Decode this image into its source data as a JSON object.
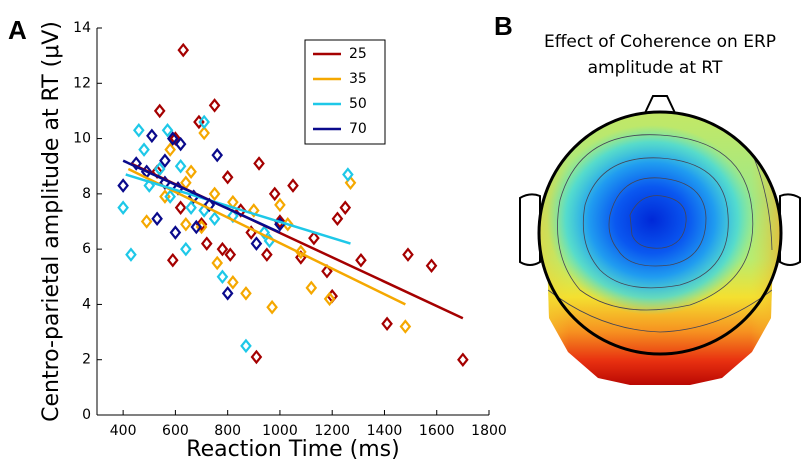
{
  "panels": [
    "A",
    "B"
  ],
  "chart_data": [
    {
      "type": "scatter",
      "xlabel": "Reaction Time (ms)",
      "ylabel": "Centro-parietal amplitude at RT (μV)",
      "xlim": [
        300,
        1800
      ],
      "xticks": [
        400,
        600,
        800,
        1000,
        1200,
        1400,
        1600,
        1800
      ],
      "ylim": [
        0,
        14
      ],
      "yticks": [
        0,
        2,
        4,
        6,
        8,
        10,
        12,
        14
      ],
      "legend": "upper right",
      "series": [
        {
          "name": "25",
          "color": "#a50000",
          "x": [
            630,
            750,
            540,
            690,
            600,
            920,
            530,
            800,
            1050,
            980,
            620,
            850,
            1000,
            1220,
            1250,
            700,
            780,
            890,
            1130,
            950,
            1080,
            1310,
            1490,
            1580,
            1180,
            590,
            1200,
            1410,
            1700,
            910,
            810,
            720
          ],
          "values": [
            13.2,
            11.2,
            11.0,
            10.6,
            10.0,
            9.1,
            8.8,
            8.6,
            8.3,
            8.0,
            7.5,
            7.4,
            7.0,
            7.1,
            7.5,
            6.9,
            6.0,
            6.6,
            6.4,
            5.8,
            5.7,
            5.6,
            5.8,
            5.4,
            5.2,
            5.6,
            4.3,
            3.3,
            2.0,
            2.1,
            5.8,
            6.2
          ],
          "fit_x": [
            430,
            1700
          ],
          "fit_y": [
            9.1,
            3.5
          ]
        },
        {
          "name": "35",
          "color": "#f5a800",
          "x": [
            710,
            580,
            660,
            640,
            750,
            820,
            900,
            1000,
            1030,
            560,
            490,
            700,
            760,
            820,
            870,
            970,
            1120,
            1190,
            1270,
            1480,
            1080,
            640
          ],
          "values": [
            10.2,
            9.6,
            8.8,
            8.4,
            8.0,
            7.7,
            7.4,
            7.6,
            6.9,
            7.9,
            7.0,
            6.8,
            5.5,
            4.8,
            4.4,
            3.9,
            4.6,
            4.2,
            8.4,
            3.2,
            5.9,
            6.9
          ],
          "fit_x": [
            420,
            1480
          ],
          "fit_y": [
            8.9,
            4.0
          ]
        },
        {
          "name": "50",
          "color": "#1ec8e8",
          "x": [
            460,
            570,
            710,
            480,
            540,
            620,
            400,
            430,
            500,
            580,
            660,
            710,
            750,
            820,
            940,
            960,
            1260,
            870,
            640,
            780
          ],
          "values": [
            10.3,
            10.3,
            10.6,
            9.6,
            8.9,
            9.0,
            7.5,
            5.8,
            8.3,
            7.9,
            7.5,
            7.4,
            7.1,
            7.2,
            6.6,
            6.3,
            8.7,
            2.5,
            6.0,
            5.0
          ],
          "fit_x": [
            410,
            1270
          ],
          "fit_y": [
            8.7,
            6.2
          ]
        },
        {
          "name": "70",
          "color": "#0a0a8c",
          "x": [
            510,
            590,
            620,
            760,
            450,
            400,
            490,
            560,
            610,
            670,
            730,
            530,
            600,
            680,
            800,
            910,
            1000,
            560
          ],
          "values": [
            10.1,
            10.0,
            9.8,
            9.4,
            9.1,
            8.3,
            8.8,
            8.4,
            8.2,
            7.9,
            7.6,
            7.1,
            6.6,
            6.8,
            4.4,
            6.2,
            6.9,
            9.2
          ],
          "fit_x": [
            400,
            1000
          ],
          "fit_y": [
            9.2,
            6.6
          ]
        }
      ]
    },
    {
      "type": "topomap",
      "title": [
        "Effect of Coherence on ERP",
        "amplitude at RT"
      ]
    }
  ]
}
